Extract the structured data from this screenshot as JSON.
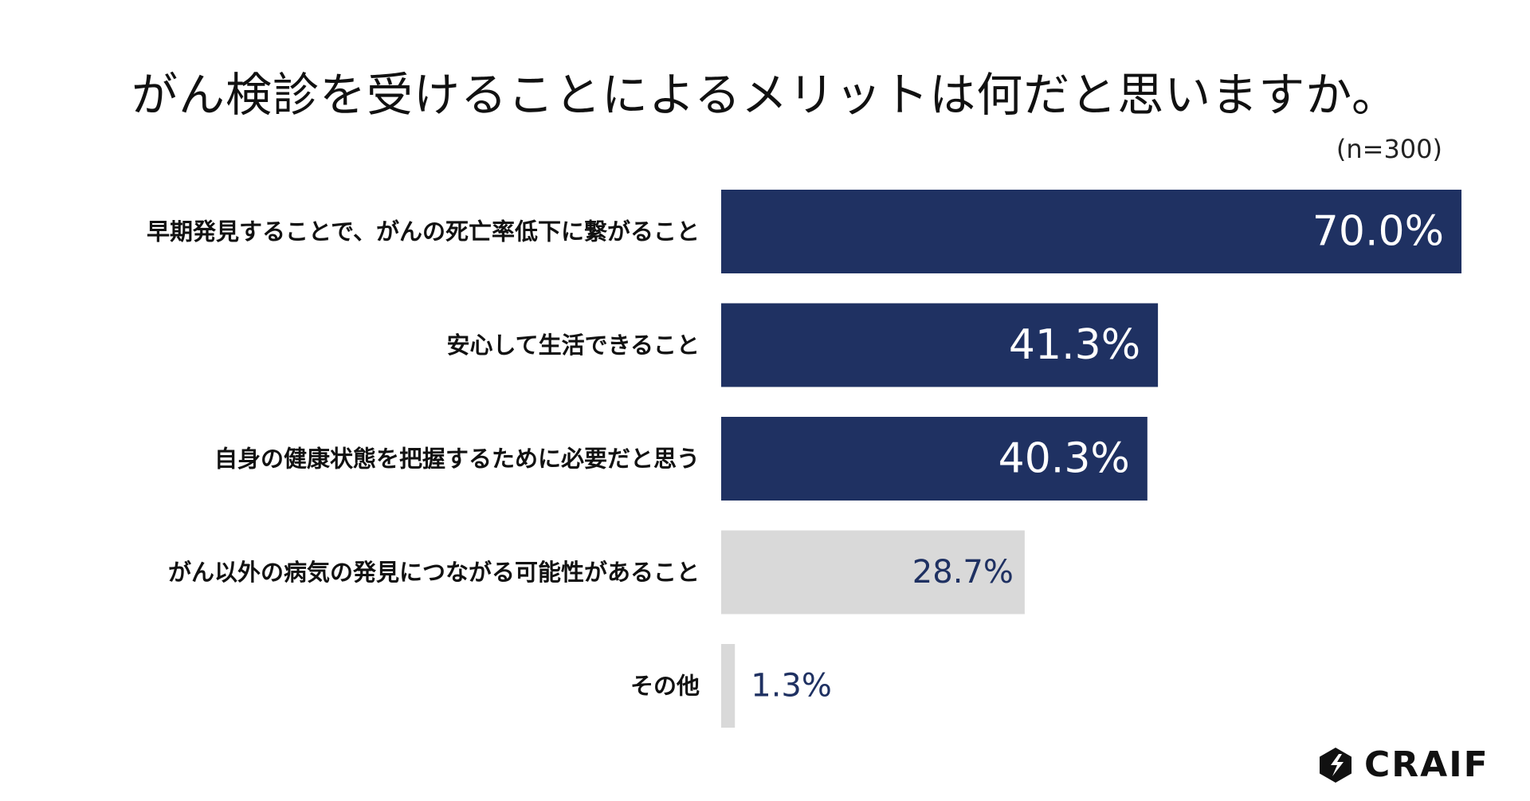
{
  "title": "がん検診を受けることによるメリットは何だと思いますか。",
  "sample_note": "(n=300)",
  "logo_text": "CRAIF",
  "colors": {
    "highlight_bar": "#1f3162",
    "other_bar": "#d9d9d9",
    "highlight_value_text": "#ffffff",
    "other_value_text": "#1f3162",
    "category_text": "#111111"
  },
  "chart_data": {
    "type": "bar",
    "orientation": "horizontal",
    "categories": [
      "早期発見することで、がんの死亡率低下に繋がること",
      "安心して生活できること",
      "自身の健康状態を把握するために必要だと思う",
      "がん以外の病気の発見につながる可能性があること",
      "その他"
    ],
    "values": [
      70.0,
      41.3,
      40.3,
      28.7,
      1.3
    ],
    "value_labels": [
      "70.0%",
      "41.3%",
      "40.3%",
      "28.7%",
      "1.3%"
    ],
    "highlighted": [
      true,
      true,
      true,
      false,
      false
    ],
    "xlim": [
      0,
      70
    ],
    "grid": false
  }
}
